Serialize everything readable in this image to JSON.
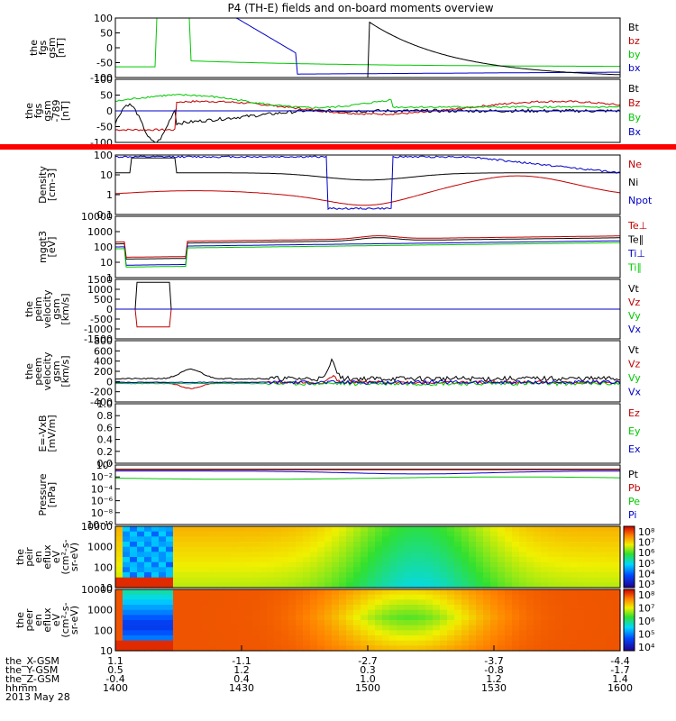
{
  "title": "P4 (TH-E) fields and on-board moments overview",
  "date_label": "2013 May 28",
  "colors": {
    "black": "#000000",
    "red": "#c00000",
    "green": "#00c800",
    "blue": "#0000c8",
    "band": "#ff0000"
  },
  "chart_data": [
    {
      "type": "line",
      "panel": 1,
      "ylabel_lines": [
        "the",
        "fgs",
        "gsm",
        "[nT]"
      ],
      "ylim": [
        -100,
        100
      ],
      "yticks": [
        "100",
        "50",
        "0",
        "-50",
        "-100"
      ],
      "legend": [
        {
          "label": "Bt",
          "color": "black"
        },
        {
          "label": "bz",
          "color": "red"
        },
        {
          "label": "by",
          "color": "green"
        },
        {
          "label": "bx",
          "color": "blue"
        }
      ]
    },
    {
      "type": "line",
      "panel": 2,
      "ylabel_lines": [
        "the",
        "fgs",
        "gsm",
        "-789",
        "[nT]"
      ],
      "ylim": [
        -100,
        100
      ],
      "yticks": [
        "100",
        "50",
        "0",
        "-50",
        "-100"
      ],
      "legend": [
        {
          "label": "Bt",
          "color": "black"
        },
        {
          "label": "Bz",
          "color": "red"
        },
        {
          "label": "By",
          "color": "green"
        },
        {
          "label": "Bx",
          "color": "blue"
        }
      ]
    },
    {
      "type": "line",
      "panel": 3,
      "ylabel_lines": [
        "Density",
        "[cm-3]"
      ],
      "scale": "log",
      "yticks": [
        "100",
        "10",
        "1",
        "0.1"
      ],
      "legend": [
        {
          "label": "Ne",
          "color": "red"
        },
        {
          "label": "Ni",
          "color": "black"
        },
        {
          "label": "Npot",
          "color": "blue"
        }
      ]
    },
    {
      "type": "line",
      "panel": 4,
      "ylabel_lines": [
        "mgqt3",
        "[eV]"
      ],
      "scale": "log",
      "yticks": [
        "10000",
        "1000",
        "100",
        "10",
        "1"
      ],
      "legend": [
        {
          "label": "Te⊥",
          "color": "red"
        },
        {
          "label": "Te∥",
          "color": "black"
        },
        {
          "label": "Ti⊥",
          "color": "blue"
        },
        {
          "label": "Ti∥",
          "color": "green"
        }
      ]
    },
    {
      "type": "line",
      "panel": 5,
      "ylabel_lines": [
        "the",
        "peim",
        "velocity",
        "gsm",
        "[km/s]"
      ],
      "ylim": [
        -1500,
        1500
      ],
      "yticks": [
        "1500",
        "1000",
        "500",
        "0",
        "-500",
        "-1000",
        "-1500"
      ],
      "legend": [
        {
          "label": "Vt",
          "color": "black"
        },
        {
          "label": "Vz",
          "color": "red"
        },
        {
          "label": "Vy",
          "color": "green"
        },
        {
          "label": "Vx",
          "color": "blue"
        }
      ]
    },
    {
      "type": "line",
      "panel": 6,
      "ylabel_lines": [
        "the",
        "peem",
        "velocity",
        "gsm",
        "[km/s]"
      ],
      "ylim": [
        -400,
        800
      ],
      "yticks": [
        "800",
        "600",
        "400",
        "200",
        "0",
        "-200",
        "-400"
      ],
      "legend": [
        {
          "label": "Vt",
          "color": "black"
        },
        {
          "label": "Vz",
          "color": "red"
        },
        {
          "label": "Vy",
          "color": "green"
        },
        {
          "label": "Vx",
          "color": "blue"
        }
      ]
    },
    {
      "type": "line",
      "panel": 7,
      "ylabel_lines": [
        "E=-VxB",
        "[mV/m]"
      ],
      "ylim": [
        0,
        1
      ],
      "yticks": [
        "1.0",
        "0.8",
        "0.6",
        "0.4",
        "0.2",
        "0.0"
      ],
      "legend": [
        {
          "label": "Ez",
          "color": "red"
        },
        {
          "label": "Ey",
          "color": "green"
        },
        {
          "label": "Ex",
          "color": "blue"
        }
      ]
    },
    {
      "type": "line",
      "panel": 8,
      "ylabel_lines": [
        "Pressure",
        "[nPa]"
      ],
      "scale": "log",
      "yticks": [
        "10⁰",
        "10⁻²",
        "10⁻⁴",
        "10⁻⁶",
        "10⁻⁸",
        "10⁻¹⁰"
      ],
      "legend": [
        {
          "label": "Pt",
          "color": "black"
        },
        {
          "label": "Pb",
          "color": "red"
        },
        {
          "label": "Pe",
          "color": "green"
        },
        {
          "label": "Pi",
          "color": "blue"
        }
      ]
    },
    {
      "type": "heatmap",
      "panel": 9,
      "ylabel_lines": [
        "the",
        "peir",
        "en",
        "eflux",
        "eV",
        "(cm²-s-",
        "sr-eV)"
      ],
      "scale": "log",
      "yticks": [
        "10000",
        "1000",
        "100",
        "10"
      ],
      "colorbar_ticks": [
        "10⁸",
        "10⁷",
        "10⁶",
        "10⁵",
        "10⁴",
        "10³"
      ]
    },
    {
      "type": "heatmap",
      "panel": 10,
      "ylabel_lines": [
        "the",
        "peer",
        "en",
        "eflux",
        "eV",
        "(cm²-s-",
        "sr-eV)"
      ],
      "scale": "log",
      "yticks": [
        "10000",
        "1000",
        "100",
        "10"
      ],
      "colorbar_ticks": [
        "10⁸",
        "10⁷",
        "10⁶",
        "10⁵",
        "10⁴"
      ]
    }
  ],
  "x_axis": {
    "rows": [
      {
        "label": "the_X-GSM",
        "values": [
          "1.1",
          "-1.1",
          "-2.7",
          "-3.7",
          "-4.4"
        ]
      },
      {
        "label": "the_Y-GSM",
        "values": [
          "0.5",
          "1.2",
          "0.3",
          "-0.8",
          "-1.7"
        ]
      },
      {
        "label": "the_Z-GSM",
        "values": [
          "-0.4",
          "0.4",
          "1.0",
          "1.2",
          "1.4"
        ]
      },
      {
        "label": "hhmm",
        "values": [
          "1400",
          "1430",
          "1500",
          "1530",
          "1600"
        ]
      }
    ]
  }
}
